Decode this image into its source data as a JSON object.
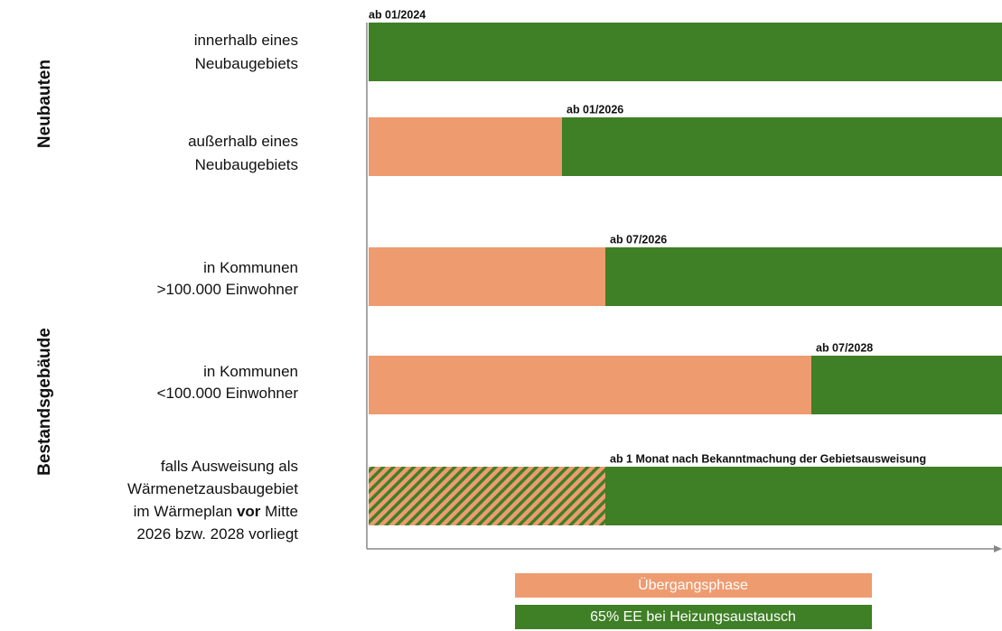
{
  "groups": [
    "Neubauten",
    "Bestandsgebäude"
  ],
  "rows": [
    {
      "label": [
        [
          "innerhalb eines"
        ],
        [
          "Neubaugebiets"
        ]
      ],
      "date": "ab 01/2024"
    },
    {
      "label": [
        [
          "außerhalb eines"
        ],
        [
          "Neubaugebiets"
        ]
      ],
      "date": "ab 01/2026"
    },
    {
      "label": [
        [
          "in Kommunen"
        ],
        [
          ">100.000 Einwohner"
        ]
      ],
      "date": "ab 07/2026"
    },
    {
      "label": [
        [
          "in Kommunen"
        ],
        [
          "<100.000 Einwohner"
        ]
      ],
      "date": "ab 07/2028"
    },
    {
      "label": [
        [
          "falls Ausweisung als"
        ],
        [
          "Wärmenetzausbaugebiet"
        ],
        [
          "im Wärmeplan ",
          "vor",
          " Mitte"
        ],
        [
          "2026 bzw. 2028 vorliegt"
        ]
      ],
      "date": "ab 1 Monat nach Bekanntmachung der Gebietsausweisung"
    }
  ],
  "legend": [
    {
      "name": "Übergangsphase",
      "color": "#ee9b70"
    },
    {
      "name": "65% EE bei Heizungsaustausch",
      "color": "#3f7f26"
    }
  ]
}
